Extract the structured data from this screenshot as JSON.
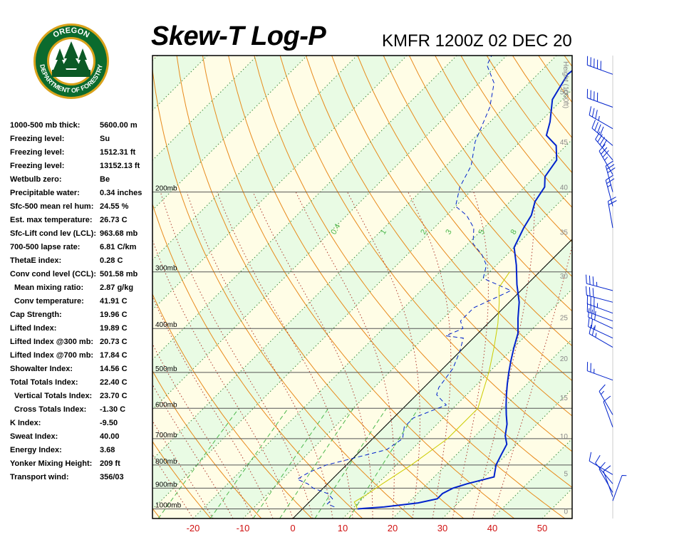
{
  "header": {
    "title": "Skew-T Log-P",
    "station": "KMFR 1200Z 02 DEC 20"
  },
  "logo": {
    "top_text": "OREGON",
    "ring_text": "DEPARTMENT OF FORESTRY",
    "colors": {
      "ring": "#0b6b2e",
      "gold": "#d9a21b",
      "inner": "#ffffff",
      "tree": "#0b5a26"
    }
  },
  "indices": [
    {
      "label": "1000-500 mb thick:",
      "value": "5600.00 m",
      "indent": false
    },
    {
      "label": "Freezing level:",
      "value": "Su",
      "indent": false
    },
    {
      "label": "Freezing level:",
      "value": "1512.31 ft",
      "indent": false
    },
    {
      "label": "Freezing level:",
      "value": "13152.13 ft",
      "indent": false
    },
    {
      "label": "Wetbulb zero:",
      "value": "Be",
      "indent": false
    },
    {
      "label": "Precipitable water:",
      "value": "0.34 inches",
      "indent": false
    },
    {
      "label": "Sfc-500 mean rel hum:",
      "value": "24.55 %",
      "indent": false
    },
    {
      "label": "Est. max temperature:",
      "value": "26.73 C",
      "indent": false
    },
    {
      "label": "Sfc-Lift cond lev (LCL):",
      "value": "963.68 mb",
      "indent": false
    },
    {
      "label": "700-500 lapse rate:",
      "value": "6.81 C/km",
      "indent": false
    },
    {
      "label": "ThetaE index:",
      "value": "0.28 C",
      "indent": false
    },
    {
      "label": "Conv cond level (CCL):",
      "value": "501.58 mb",
      "indent": false
    },
    {
      "label": "Mean mixing ratio:",
      "value": "2.87 g/kg",
      "indent": true
    },
    {
      "label": "Conv temperature:",
      "value": "41.91 C",
      "indent": true
    },
    {
      "label": "Cap Strength:",
      "value": "19.96 C",
      "indent": false
    },
    {
      "label": "Lifted Index:",
      "value": "19.89 C",
      "indent": false
    },
    {
      "label": "Lifted Index @300 mb:",
      "value": "20.73 C",
      "indent": false
    },
    {
      "label": "Lifted Index @700 mb:",
      "value": "17.84 C",
      "indent": false
    },
    {
      "label": "Showalter Index:",
      "value": "14.56 C",
      "indent": false
    },
    {
      "label": "Total Totals Index:",
      "value": "22.40 C",
      "indent": false
    },
    {
      "label": "Vertical Totals Index:",
      "value": "23.70 C",
      "indent": true
    },
    {
      "label": "Cross Totals Index:",
      "value": "-1.30 C",
      "indent": true
    },
    {
      "label": "K Index:",
      "value": "-9.50",
      "indent": false
    },
    {
      "label": "Sweat Index:",
      "value": "40.00",
      "indent": false
    },
    {
      "label": "Energy Index:",
      "value": "3.68",
      "indent": false
    },
    {
      "label": "Yonker Mixing Height:",
      "value": "209 ft",
      "indent": false
    },
    {
      "label": "Transport wind:",
      "value": "356/03",
      "indent": false
    }
  ],
  "chart_data": {
    "type": "line",
    "xlim": [
      -30,
      55
    ],
    "x_ticks": [
      -20,
      -10,
      0,
      10,
      20,
      30,
      40,
      50
    ],
    "x_tick_labels": [
      "-20",
      "-10",
      "0",
      "10",
      "20",
      "30",
      "40",
      "50"
    ],
    "pressure_levels": [
      {
        "p": 200,
        "label": "200mb"
      },
      {
        "p": 300,
        "label": "300mb"
      },
      {
        "p": 400,
        "label": "400mb"
      },
      {
        "p": 500,
        "label": "500mb"
      },
      {
        "p": 600,
        "label": "600mb"
      },
      {
        "p": 700,
        "label": "700mb"
      },
      {
        "p": 800,
        "label": "800mb"
      },
      {
        "p": 900,
        "label": "900mb"
      },
      {
        "p": 1000,
        "label": "1000mb"
      }
    ],
    "height_axis": {
      "label": "Height (1000ft)",
      "ticks": [
        {
          "p": 1010,
          "label": "0"
        },
        {
          "p": 835,
          "label": "5"
        },
        {
          "p": 690,
          "label": "10"
        },
        {
          "p": 568,
          "label": "15"
        },
        {
          "p": 465,
          "label": "20"
        },
        {
          "p": 378,
          "label": "25"
        },
        {
          "p": 306,
          "label": "30"
        },
        {
          "p": 245,
          "label": "35"
        },
        {
          "p": 195,
          "label": "40"
        },
        {
          "p": 155,
          "label": "45"
        },
        {
          "p": 120,
          "label": "50"
        }
      ]
    },
    "mixing_ratio_labels": [
      "0.4",
      "1",
      "2",
      "3",
      "5",
      "8"
    ],
    "mixing_ratio_values": [
      0.4,
      1,
      2,
      3,
      5,
      8
    ],
    "series": [
      {
        "type": "temperature",
        "color": "#0022cc",
        "points": [
          [
            1000,
            11
          ],
          [
            990,
            16
          ],
          [
            970,
            22
          ],
          [
            950,
            25
          ],
          [
            925,
            25
          ],
          [
            900,
            26
          ],
          [
            880,
            28
          ],
          [
            850,
            32
          ],
          [
            800,
            30
          ],
          [
            760,
            29
          ],
          [
            720,
            28
          ],
          [
            690,
            26
          ],
          [
            650,
            24
          ],
          [
            620,
            22
          ],
          [
            590,
            20
          ],
          [
            560,
            18
          ],
          [
            530,
            16
          ],
          [
            500,
            14
          ],
          [
            470,
            12
          ],
          [
            440,
            10
          ],
          [
            410,
            8
          ],
          [
            380,
            5
          ],
          [
            350,
            2
          ],
          [
            320,
            -2
          ],
          [
            290,
            -6
          ],
          [
            265,
            -10
          ],
          [
            240,
            -12
          ],
          [
            225,
            -13
          ],
          [
            210,
            -15
          ],
          [
            195,
            -16
          ],
          [
            185,
            -18
          ],
          [
            170,
            -19
          ],
          [
            158,
            -22
          ],
          [
            150,
            -26
          ],
          [
            140,
            -28
          ],
          [
            125,
            -32
          ],
          [
            110,
            -34
          ],
          [
            100,
            -33
          ]
        ]
      },
      {
        "type": "dewpoint",
        "color": "#0022cc",
        "dashed": true,
        "points": [
          [
            990,
            6
          ],
          [
            975,
            4
          ],
          [
            950,
            4
          ],
          [
            925,
            2
          ],
          [
            900,
            -2
          ],
          [
            880,
            -4
          ],
          [
            860,
            -7
          ],
          [
            830,
            -6
          ],
          [
            800,
            -4
          ],
          [
            780,
            -1
          ],
          [
            740,
            5
          ],
          [
            700,
            6
          ],
          [
            660,
            4
          ],
          [
            630,
            4
          ],
          [
            590,
            8
          ],
          [
            560,
            4
          ],
          [
            540,
            3
          ],
          [
            490,
            2
          ],
          [
            450,
            0
          ],
          [
            420,
            -2
          ],
          [
            415,
            -6
          ],
          [
            400,
            -4
          ],
          [
            385,
            -6
          ],
          [
            360,
            -6
          ],
          [
            345,
            -4
          ],
          [
            330,
            -2
          ],
          [
            310,
            -10
          ],
          [
            290,
            -12
          ],
          [
            275,
            -15
          ],
          [
            260,
            -19
          ],
          [
            240,
            -22
          ],
          [
            225,
            -26
          ],
          [
            215,
            -30
          ],
          [
            195,
            -33
          ],
          [
            175,
            -35
          ],
          [
            155,
            -39
          ],
          [
            130,
            -43
          ],
          [
            115,
            -47
          ],
          [
            105,
            -52
          ],
          [
            100,
            -53
          ]
        ]
      },
      {
        "type": "parcel",
        "color": "#cccc00",
        "points": [
          [
            1000,
            11
          ],
          [
            965,
            9
          ],
          [
            930,
            10
          ],
          [
            880,
            11
          ],
          [
            800,
            13
          ],
          [
            700,
            15
          ],
          [
            600,
            15
          ],
          [
            500,
            10
          ],
          [
            440,
            6
          ],
          [
            390,
            2
          ],
          [
            350,
            -2
          ],
          [
            325,
            -5
          ],
          [
            300,
            -6
          ]
        ]
      }
    ],
    "wind_barbs": [
      {
        "p": 110,
        "dir": 290,
        "spd": 50
      },
      {
        "p": 130,
        "dir": 290,
        "spd": 40
      },
      {
        "p": 145,
        "dir": 300,
        "spd": 35
      },
      {
        "p": 158,
        "dir": 310,
        "spd": 40
      },
      {
        "p": 170,
        "dir": 320,
        "spd": 40
      },
      {
        "p": 183,
        "dir": 330,
        "spd": 35
      },
      {
        "p": 200,
        "dir": 345,
        "spd": 30
      },
      {
        "p": 215,
        "dir": 345,
        "spd": 25
      },
      {
        "p": 240,
        "dir": 350,
        "spd": 20
      },
      {
        "p": 330,
        "dir": 285,
        "spd": 35
      },
      {
        "p": 350,
        "dir": 285,
        "spd": 30
      },
      {
        "p": 370,
        "dir": 290,
        "spd": 35
      },
      {
        "p": 385,
        "dir": 290,
        "spd": 30
      },
      {
        "p": 400,
        "dir": 295,
        "spd": 30
      },
      {
        "p": 420,
        "dir": 295,
        "spd": 25
      },
      {
        "p": 440,
        "dir": 300,
        "spd": 25
      },
      {
        "p": 520,
        "dir": 290,
        "spd": 25
      },
      {
        "p": 620,
        "dir": 330,
        "spd": 15
      },
      {
        "p": 660,
        "dir": 340,
        "spd": 10
      },
      {
        "p": 840,
        "dir": 300,
        "spd": 10
      },
      {
        "p": 880,
        "dir": 320,
        "spd": 10
      },
      {
        "p": 920,
        "dir": 330,
        "spd": 10
      },
      {
        "p": 940,
        "dir": 340,
        "spd": 10
      },
      {
        "p": 960,
        "dir": 20,
        "spd": 5
      }
    ]
  }
}
